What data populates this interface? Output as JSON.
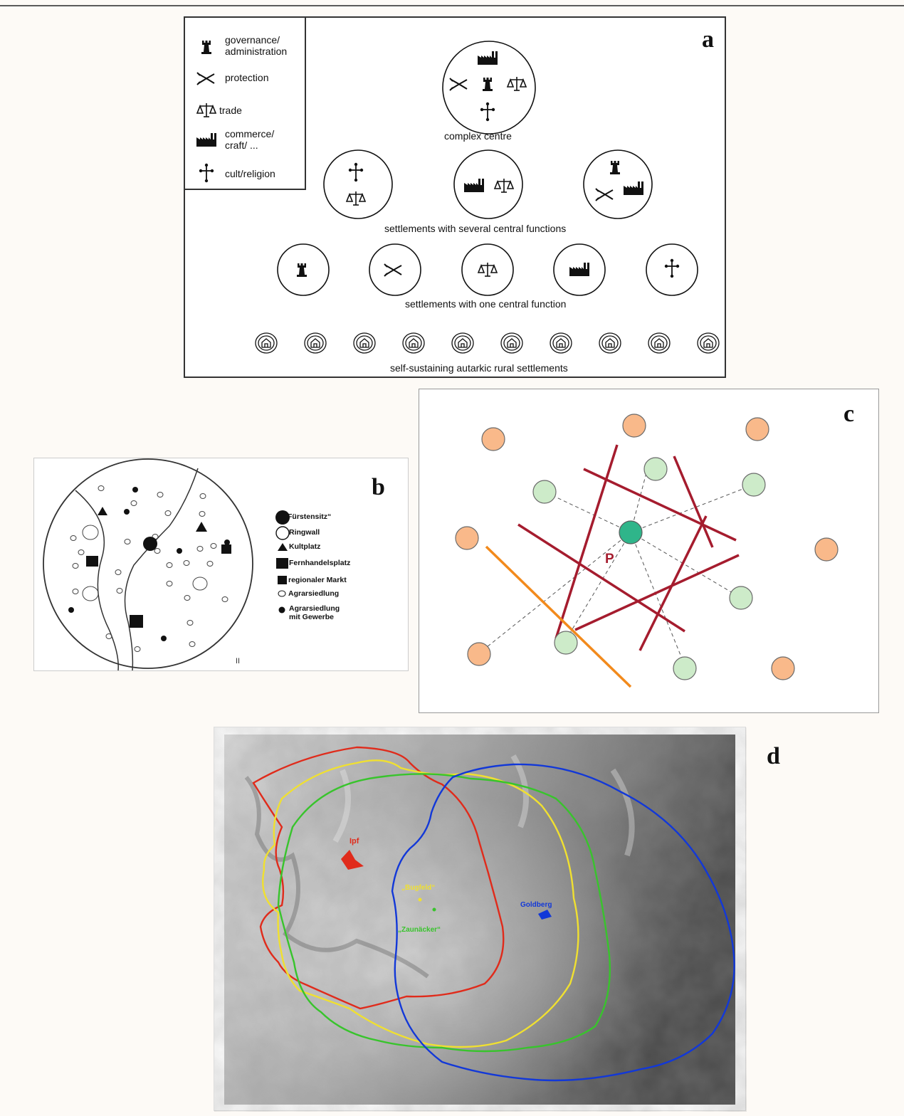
{
  "panel_a": {
    "letter": "a",
    "legend": [
      {
        "icon": "governance-icon",
        "label_lines": [
          "governance/",
          "administration"
        ]
      },
      {
        "icon": "protection-icon",
        "label_lines": [
          "protection"
        ]
      },
      {
        "icon": "trade-icon",
        "label_lines": [
          "trade"
        ]
      },
      {
        "icon": "commerce-icon",
        "label_lines": [
          "commerce/",
          "craft/ ..."
        ]
      },
      {
        "icon": "cult-icon",
        "label_lines": [
          "cult/religion"
        ]
      }
    ],
    "level_complex": "complex centre",
    "level_several": "settlements with several central functions",
    "level_one": "settlements with one central function",
    "level_rural": "self-sustaining autarkic rural settlements"
  },
  "panel_b": {
    "letter": "b",
    "legend": [
      "Fürstensitz“",
      "Ringwall",
      "Kultplatz",
      "Fernhandelsplatz",
      "regionaler Markt",
      "Agrarsiedlung",
      "Agrarsiedlung",
      "mit Gewerbe"
    ],
    "corner_mark": "II"
  },
  "panel_c": {
    "letter": "c",
    "point_label": "P",
    "colors": {
      "outer": "#f9b98a",
      "inner": "#cdebc9",
      "center": "#2fb58a",
      "red_lines": "#a51c2e",
      "orange_line": "#f28a1c"
    }
  },
  "panel_d": {
    "letter": "d",
    "labels": {
      "ipf": "Ipf",
      "bugfeld": "„Bugfeld“",
      "zaunaecker": "„Zaunäcker“",
      "goldberg": "Goldberg"
    },
    "colors": {
      "ipf": "#e02b1b",
      "bugfeld": "#f0e030",
      "zaunaecker": "#38c42c",
      "goldberg": "#1238d8"
    }
  }
}
